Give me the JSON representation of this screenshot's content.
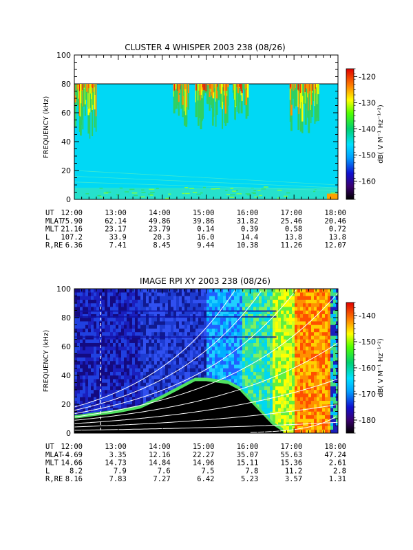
{
  "chart_data": [
    {
      "type": "heatmap",
      "title": "CLUSTER 4 WHISPER 2003 238 (08/26)",
      "ylabel": "FREQUENCY (kHz)",
      "ylim": [
        0,
        100
      ],
      "yticks": [
        "0",
        "20",
        "40",
        "60",
        "80",
        "100"
      ],
      "data_ceiling_khz": 80,
      "x_tick_labels": [
        "12:00",
        "13:00",
        "14:00",
        "15:00",
        "16:00",
        "17:00",
        "18:00"
      ],
      "colorbar": {
        "label": "dB( V M⁻¹ Hz⁻¹ᐟ²)",
        "ticks": [
          "-120",
          "-130",
          "-140",
          "-150",
          "-160"
        ],
        "range": [
          -167,
          -117
        ]
      },
      "ephemeris": [
        {
          "label": "UT",
          "values": [
            "12:00",
            "13:00",
            "14:00",
            "15:00",
            "16:00",
            "17:00",
            "18:00"
          ]
        },
        {
          "label": "MLAT",
          "values": [
            "75.90",
            "62.14",
            "49.86",
            "39.86",
            "31.82",
            "25.46",
            "20.46"
          ]
        },
        {
          "label": "MLT",
          "values": [
            "21.16",
            "23.17",
            "23.79",
            "0.14",
            "0.39",
            "0.58",
            "0.72"
          ]
        },
        {
          "label": "L",
          "values": [
            "107.2",
            "33.9",
            "20.3",
            "16.0",
            "14.4",
            "13.8",
            "13.8"
          ]
        },
        {
          "label": "R,RE",
          "values": [
            "6.36",
            "7.41",
            "8.45",
            "9.44",
            "10.38",
            "11.26",
            "12.07"
          ]
        }
      ],
      "bursts_ut": [
        {
          "start": 12.0,
          "end": 12.5,
          "min_khz": 40
        },
        {
          "start": 14.25,
          "end": 14.6,
          "min_khz": 50
        },
        {
          "start": 14.75,
          "end": 15.5,
          "min_khz": 48
        },
        {
          "start": 15.6,
          "end": 15.95,
          "min_khz": 55
        },
        {
          "start": 16.9,
          "end": 17.55,
          "min_khz": 45
        }
      ]
    },
    {
      "type": "heatmap",
      "title": "IMAGE RPI XY 2003 238 (08/26)",
      "ylabel": "FREQUENCY (kHz)",
      "ylim": [
        0,
        100
      ],
      "yticks": [
        "0",
        "20",
        "40",
        "60",
        "80",
        "100"
      ],
      "x_tick_labels": [
        "12:00",
        "13:00",
        "14:00",
        "15:00",
        "16:00",
        "17:00",
        "18:00"
      ],
      "colorbar": {
        "label": "dB( V M⁻¹ Hz⁻¹ᐟ²)",
        "ticks": [
          "-140",
          "-150",
          "-160",
          "-170",
          "-180"
        ],
        "range": [
          -185,
          -135
        ]
      },
      "ephemeris": [
        {
          "label": "UT",
          "values": [
            "12:00",
            "13:00",
            "14:00",
            "15:00",
            "16:00",
            "17:00",
            "18:00"
          ]
        },
        {
          "label": "MLAT",
          "values": [
            "-4.69",
            "3.35",
            "12.16",
            "22.27",
            "35.07",
            "55.63",
            "47.24"
          ]
        },
        {
          "label": "MLT",
          "values": [
            "14.66",
            "14.73",
            "14.84",
            "14.96",
            "15.11",
            "15.36",
            "2.61"
          ]
        },
        {
          "label": "L",
          "values": [
            "8.2",
            "7.9",
            "7.6",
            "7.5",
            "7.8",
            "11.2",
            "2.8"
          ]
        },
        {
          "label": "R,RE",
          "values": [
            "8.16",
            "7.83",
            "7.27",
            "6.42",
            "5.23",
            "3.57",
            "1.31"
          ]
        }
      ],
      "dark_region_boundary_khz": [
        [
          12.0,
          10
        ],
        [
          12.5,
          12
        ],
        [
          13.0,
          14
        ],
        [
          13.5,
          17
        ],
        [
          14.0,
          24
        ],
        [
          14.5,
          32
        ],
        [
          14.75,
          36
        ],
        [
          15.0,
          36
        ],
        [
          15.5,
          34
        ],
        [
          15.75,
          30
        ],
        [
          16.0,
          22
        ],
        [
          16.25,
          14
        ],
        [
          16.5,
          6
        ],
        [
          16.75,
          1
        ]
      ]
    }
  ]
}
